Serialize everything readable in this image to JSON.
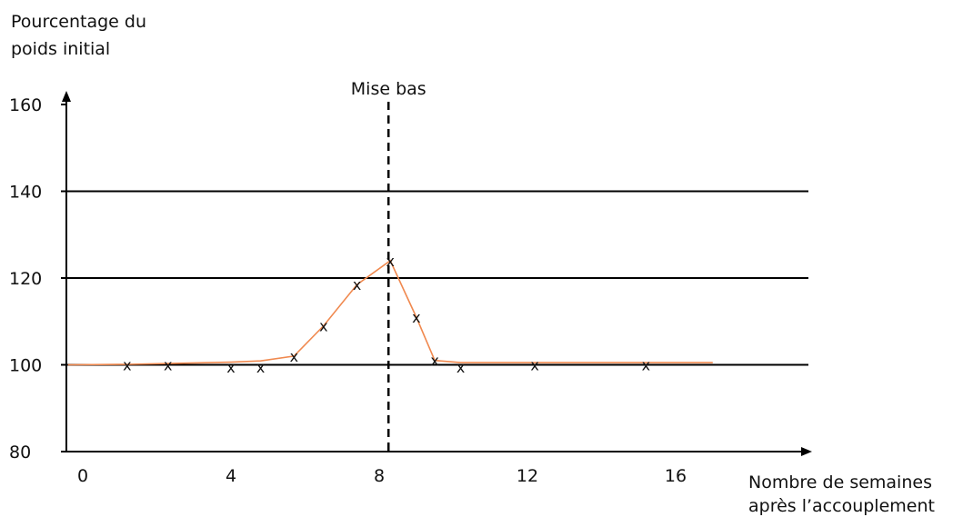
{
  "chart_data": {
    "type": "line",
    "ylabel_lines": [
      "Pourcentage du",
      "poids initial"
    ],
    "xlabel_lines": [
      "Nombre de semaines",
      "après l’accouplement"
    ],
    "xlim": [
      -0.4,
      20
    ],
    "ylim": [
      80,
      160
    ],
    "x_ticks": [
      0,
      4,
      8,
      12,
      16
    ],
    "x_tick_labels": [
      "0",
      "4",
      "8",
      "12",
      "16"
    ],
    "y_ticks": [
      80,
      100,
      120,
      140,
      160
    ],
    "y_tick_labels": [
      "80",
      "100",
      "120",
      "140",
      "160"
    ],
    "gridlines_y": [
      100,
      120,
      140
    ],
    "series": [
      {
        "line_color": "#f0894f",
        "marker": "x",
        "x": [
          -0.4,
          1.2,
          2.3,
          4.0,
          4.8,
          5.7,
          6.5,
          7.4,
          8.3,
          9.0,
          9.5,
          10.2,
          12.2,
          15.2,
          17.0
        ],
        "y": [
          100.0,
          100.1,
          100.3,
          100.6,
          100.9,
          102.0,
          109.0,
          118.5,
          124.0,
          111.0,
          101.0,
          100.5,
          100.5,
          100.5,
          100.5
        ],
        "marker_x": [
          1.2,
          2.3,
          4.0,
          4.8,
          5.7,
          6.5,
          7.4,
          8.3,
          9.0,
          9.5,
          10.2,
          12.2,
          15.2
        ],
        "marker_y": [
          100.0,
          100.0,
          99.5,
          99.5,
          102.0,
          109.0,
          118.5,
          124.0,
          111.0,
          101.0,
          99.5,
          100.0,
          100.0
        ]
      }
    ],
    "vertical_marker": {
      "x": 8.3,
      "label": "Mise bas",
      "style": "dashed"
    }
  }
}
